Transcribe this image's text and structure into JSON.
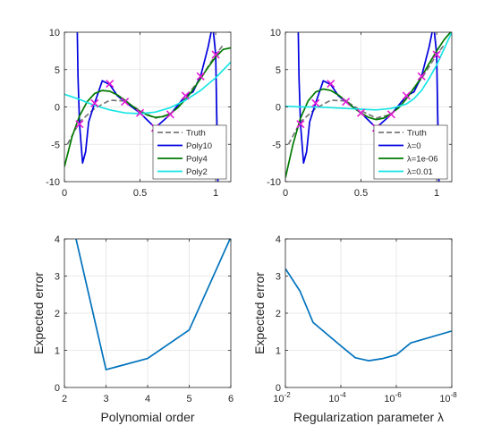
{
  "chart_data": [
    {
      "type": "line",
      "panel": "top-left",
      "xlim": [
        0,
        1.1
      ],
      "ylim": [
        -10,
        10
      ],
      "xticks": [
        0,
        0.5,
        1
      ],
      "xtick_labels": [
        "0",
        "0.5",
        "1"
      ],
      "yticks": [
        -10,
        -5,
        0,
        5,
        10
      ],
      "ytick_labels": [
        "-10",
        "-5",
        "0",
        "5",
        "10"
      ],
      "grid": true,
      "legend_placement": "bottom-right",
      "points": {
        "x": [
          0.1,
          0.2,
          0.3,
          0.4,
          0.5,
          0.6,
          0.7,
          0.8,
          0.9,
          1.0
        ],
        "y": [
          -2.3,
          0.5,
          3.1,
          0.7,
          -0.8,
          -2.8,
          -1.0,
          1.5,
          4.1,
          7.0
        ],
        "color": "#e31ad6"
      },
      "series": [
        {
          "name": "Truth",
          "color": "#777777",
          "dash": true,
          "x": [
            0.02,
            0.1,
            0.2,
            0.3,
            0.4,
            0.5,
            0.6,
            0.7,
            0.8,
            0.9,
            1.0,
            1.05
          ],
          "y": [
            -5.0,
            -2.0,
            -0.2,
            0.9,
            0.8,
            -0.5,
            -1.5,
            -1.0,
            1.3,
            3.8,
            7.0,
            8.3
          ]
        },
        {
          "name": "Poly10",
          "color": "#0000e0",
          "dash": false,
          "x": [
            0.085,
            0.09,
            0.1,
            0.12,
            0.14,
            0.16,
            0.2,
            0.25,
            0.3,
            0.35,
            0.4,
            0.5,
            0.6,
            0.7,
            0.8,
            0.85,
            0.9,
            0.95,
            0.98,
            1.0,
            1.015
          ],
          "y": [
            10,
            4.0,
            -2.3,
            -7.5,
            -6.0,
            -2.0,
            0.5,
            3.5,
            3.0,
            1.5,
            0.7,
            -0.8,
            -2.8,
            -1.0,
            1.5,
            2.0,
            4.1,
            8.0,
            11,
            7.0,
            -10
          ]
        },
        {
          "name": "Poly4",
          "color": "#007a00",
          "dash": false,
          "x": [
            0,
            0.05,
            0.1,
            0.15,
            0.2,
            0.25,
            0.3,
            0.35,
            0.4,
            0.45,
            0.5,
            0.55,
            0.6,
            0.65,
            0.7,
            0.75,
            0.8,
            0.85,
            0.9,
            0.95,
            1.0,
            1.05,
            1.1
          ],
          "y": [
            -8.0,
            -4.0,
            -1.2,
            0.7,
            1.8,
            2.2,
            2.1,
            1.6,
            0.9,
            0.1,
            -0.6,
            -1.1,
            -1.4,
            -1.3,
            -0.9,
            -0.1,
            1.0,
            2.3,
            3.8,
            5.3,
            6.7,
            7.7,
            7.9
          ]
        },
        {
          "name": "Poly2",
          "color": "#19e5e5",
          "dash": false,
          "x": [
            0,
            0.1,
            0.2,
            0.3,
            0.4,
            0.5,
            0.6,
            0.7,
            0.8,
            0.9,
            1.0,
            1.1
          ],
          "y": [
            1.7,
            1.0,
            0.2,
            -0.4,
            -0.8,
            -0.9,
            -0.7,
            -0.1,
            0.9,
            2.2,
            3.9,
            6.0
          ]
        }
      ]
    },
    {
      "type": "line",
      "panel": "top-right",
      "xlim": [
        0,
        1.1
      ],
      "ylim": [
        -10,
        10
      ],
      "xticks": [
        0,
        0.5,
        1
      ],
      "xtick_labels": [
        "0",
        "0.5",
        "1"
      ],
      "yticks": [
        -10,
        -5,
        0,
        5,
        10
      ],
      "ytick_labels": [
        "-10",
        "-5",
        "0",
        "5",
        "10"
      ],
      "grid": true,
      "legend_placement": "bottom-right",
      "points": {
        "x": [
          0.1,
          0.2,
          0.3,
          0.4,
          0.5,
          0.6,
          0.7,
          0.8,
          0.9,
          1.0
        ],
        "y": [
          -2.3,
          0.5,
          3.1,
          0.7,
          -0.8,
          -2.8,
          -1.0,
          1.5,
          4.1,
          7.0
        ],
        "color": "#e31ad6"
      },
      "series": [
        {
          "name": "Truth",
          "color": "#777777",
          "dash": true,
          "x": [
            0.02,
            0.1,
            0.2,
            0.3,
            0.4,
            0.5,
            0.6,
            0.7,
            0.8,
            0.9,
            1.0,
            1.05
          ],
          "y": [
            -5.0,
            -2.0,
            -0.2,
            0.9,
            0.8,
            -0.5,
            -1.5,
            -1.0,
            1.3,
            3.8,
            7.0,
            8.3
          ]
        },
        {
          "name": "λ=0",
          "color": "#0000e0",
          "dash": false,
          "x": [
            0.085,
            0.09,
            0.1,
            0.12,
            0.14,
            0.16,
            0.2,
            0.25,
            0.3,
            0.35,
            0.4,
            0.5,
            0.6,
            0.7,
            0.8,
            0.85,
            0.9,
            0.95,
            0.98,
            1.0,
            1.015
          ],
          "y": [
            10,
            4.0,
            -2.3,
            -7.5,
            -6.0,
            -2.0,
            0.5,
            3.5,
            3.0,
            1.5,
            0.7,
            -0.8,
            -2.8,
            -1.0,
            1.5,
            2.0,
            4.1,
            8.0,
            11,
            7.0,
            -10
          ]
        },
        {
          "name": "λ=1e-06",
          "color": "#007a00",
          "dash": false,
          "x": [
            0,
            0.05,
            0.1,
            0.15,
            0.2,
            0.25,
            0.3,
            0.35,
            0.4,
            0.45,
            0.5,
            0.55,
            0.6,
            0.65,
            0.7,
            0.75,
            0.8,
            0.85,
            0.9,
            0.95,
            1.0,
            1.05,
            1.1
          ],
          "y": [
            -9.5,
            -5.0,
            -1.5,
            0.8,
            2.0,
            2.4,
            2.2,
            1.6,
            0.8,
            -0.1,
            -0.8,
            -1.4,
            -1.7,
            -1.5,
            -0.9,
            -0.1,
            1.1,
            2.5,
            4.0,
            5.8,
            7.5,
            9.0,
            10.2
          ]
        },
        {
          "name": "λ=0.01",
          "color": "#19e5e5",
          "dash": false,
          "x": [
            0,
            0.1,
            0.2,
            0.3,
            0.4,
            0.5,
            0.6,
            0.7,
            0.8,
            0.85,
            0.9,
            0.95,
            1.0,
            1.05,
            1.1
          ],
          "y": [
            0.1,
            0.0,
            0.0,
            -0.1,
            -0.2,
            -0.3,
            -0.4,
            -0.2,
            0.4,
            1.1,
            2.2,
            3.8,
            5.6,
            7.8,
            10.0
          ]
        }
      ]
    },
    {
      "type": "line",
      "panel": "bottom-left",
      "xlabel": "Polynomial order",
      "ylabel": "Expected error",
      "xlim": [
        2,
        6
      ],
      "ylim": [
        0,
        4
      ],
      "xticks": [
        2,
        3,
        4,
        5,
        6
      ],
      "xtick_labels": [
        "2",
        "3",
        "4",
        "5",
        "6"
      ],
      "yticks": [
        0,
        1,
        2,
        3,
        4
      ],
      "ytick_labels": [
        "0",
        "1",
        "2",
        "3",
        "4"
      ],
      "grid": true,
      "series": [
        {
          "color": "#0072bd",
          "x": [
            2.28,
            3,
            4,
            5,
            5.98
          ],
          "y": [
            4.0,
            0.48,
            0.78,
            1.55,
            4.0
          ]
        }
      ]
    },
    {
      "type": "line",
      "panel": "bottom-right",
      "xlabel": "Regularization parameter λ",
      "ylabel": "Expected error",
      "xscale": "log-reversed",
      "xlim": [
        0.01,
        1e-08
      ],
      "ylim": [
        0,
        4
      ],
      "xticks": [
        0.01,
        0.0001,
        1e-06,
        1e-08
      ],
      "xtick_labels": [
        {
          "base": "10",
          "exp": "-2"
        },
        {
          "base": "10",
          "exp": "-4"
        },
        {
          "base": "10",
          "exp": "-6"
        },
        {
          "base": "10",
          "exp": "-8"
        }
      ],
      "yticks": [
        0,
        1,
        2,
        3,
        4
      ],
      "ytick_labels": [
        "0",
        "1",
        "2",
        "3",
        "4"
      ],
      "grid": true,
      "series": [
        {
          "color": "#0072bd",
          "x": [
            0.01,
            0.003,
            0.001,
            0.0001,
            3e-05,
            1e-05,
            3e-06,
            1e-06,
            3e-07,
            1e-08
          ],
          "y": [
            3.2,
            2.6,
            1.75,
            1.12,
            0.8,
            0.72,
            0.78,
            0.88,
            1.2,
            1.52
          ]
        }
      ]
    }
  ]
}
